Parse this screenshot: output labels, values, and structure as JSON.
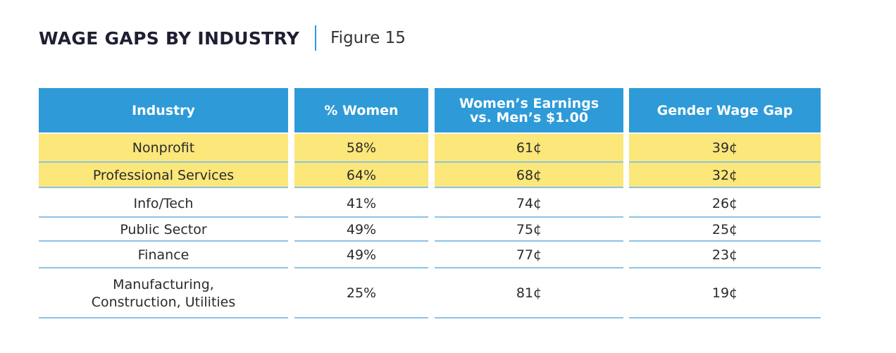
{
  "title": "WAGE GAPS BY INDUSTRY",
  "figure": "Figure 15",
  "colors": {
    "header": "#2e9ad8",
    "highlight": "#fbe77a",
    "rule": "#8cc3e8"
  },
  "chart_data": {
    "type": "table",
    "columns": [
      "Industry",
      "% Women",
      "Women’s Earnings vs. Men’s $1.00",
      "Gender Wage Gap"
    ],
    "header_lines": [
      [
        "Industry"
      ],
      [
        "% Women"
      ],
      [
        "Women’s Earnings",
        "vs. Men’s $1.00"
      ],
      [
        "Gender Wage Gap"
      ]
    ],
    "rows": [
      {
        "industry": [
          "Nonprofit"
        ],
        "pct_women": "58%",
        "earnings": "61¢",
        "gap": "39¢",
        "highlighted": true
      },
      {
        "industry": [
          "Professional Services"
        ],
        "pct_women": "64%",
        "earnings": "68¢",
        "gap": "32¢",
        "highlighted": true
      },
      {
        "industry": [
          "Info/Tech"
        ],
        "pct_women": "41%",
        "earnings": "74¢",
        "gap": "26¢",
        "highlighted": false
      },
      {
        "industry": [
          "Public Sector"
        ],
        "pct_women": "49%",
        "earnings": "75¢",
        "gap": "25¢",
        "highlighted": false
      },
      {
        "industry": [
          "Finance"
        ],
        "pct_women": "49%",
        "earnings": "77¢",
        "gap": "23¢",
        "highlighted": false
      },
      {
        "industry": [
          "Manufacturing,",
          "Construction, Utilities"
        ],
        "pct_women": "25%",
        "earnings": "81¢",
        "gap": "19¢",
        "highlighted": false
      }
    ]
  }
}
